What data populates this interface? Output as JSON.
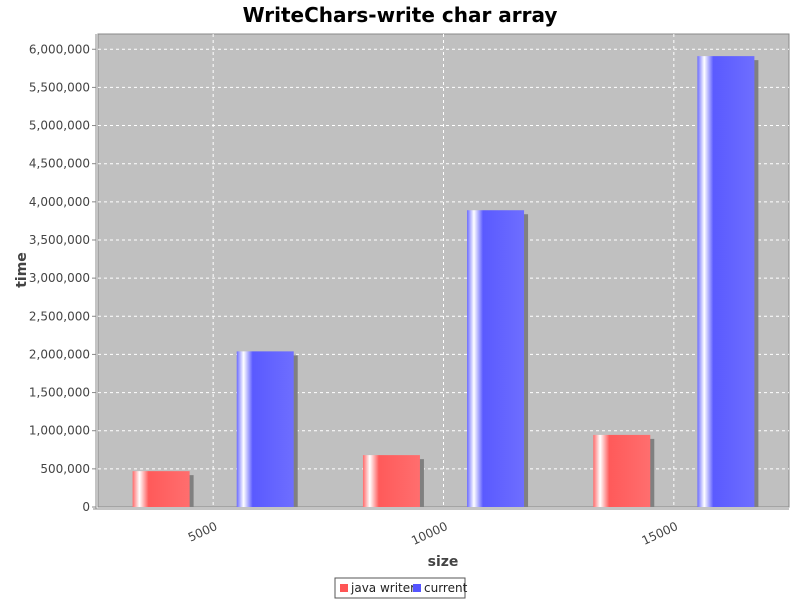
{
  "chart_data": {
    "type": "bar",
    "title": "WriteChars-write char array",
    "xlabel": "size",
    "ylabel": "time",
    "categories": [
      "5000",
      "10000",
      "15000"
    ],
    "series": [
      {
        "name": "java writer",
        "values": [
          470000,
          680000,
          945000
        ],
        "color": "#ff5555"
      },
      {
        "name": "current",
        "values": [
          2040000,
          3890000,
          5910000
        ],
        "color": "#5555ff"
      }
    ],
    "ylim": [
      0,
      6200000
    ],
    "yticks": [
      0,
      500000,
      1000000,
      1500000,
      2000000,
      2500000,
      3000000,
      3500000,
      4000000,
      4500000,
      5000000,
      5500000,
      6000000
    ],
    "ytick_labels": [
      "0",
      "500,000",
      "1,000,000",
      "1,500,000",
      "2,000,000",
      "2,500,000",
      "3,000,000",
      "3,500,000",
      "4,000,000",
      "4,500,000",
      "5,000,000",
      "5,500,000",
      "6,000,000"
    ],
    "grid": true,
    "legend": "bottom",
    "plot_background": "#c0c0c0"
  }
}
